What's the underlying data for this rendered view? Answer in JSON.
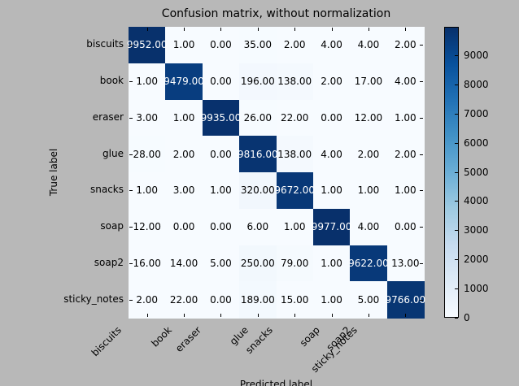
{
  "figure": {
    "background_color": "#b8b8b8",
    "plot_background_color": "#f7fbff",
    "text_color": "#000000",
    "cell_text_color_high": "#ffffff",
    "cell_text_color_low": "#000000"
  },
  "chart_data": {
    "type": "heatmap",
    "title": "Confusion matrix, without normalization",
    "xlabel": "Predicted label",
    "ylabel": "True label",
    "classes": [
      "biscuits",
      "book",
      "eraser",
      "glue",
      "snacks",
      "soap",
      "soap2",
      "sticky_notes"
    ],
    "matrix": [
      [
        9952,
        1,
        0,
        35,
        2,
        4,
        4,
        2
      ],
      [
        1,
        9479,
        0,
        196,
        138,
        2,
        17,
        4
      ],
      [
        3,
        1,
        9935,
        26,
        22,
        0,
        12,
        1
      ],
      [
        28,
        2,
        0,
        9816,
        138,
        4,
        2,
        2
      ],
      [
        1,
        3,
        1,
        320,
        9672,
        1,
        1,
        1
      ],
      [
        12,
        0,
        0,
        6,
        1,
        9977,
        4,
        0
      ],
      [
        16,
        14,
        5,
        250,
        79,
        1,
        9622,
        13
      ],
      [
        2,
        22,
        0,
        189,
        15,
        1,
        5,
        9766
      ]
    ],
    "value_decimals": 2,
    "vmin": 0,
    "vmax": 9977,
    "colormap_name": "Blues",
    "colormap_anchors": [
      [
        0.0,
        "#f7fbff"
      ],
      [
        0.125,
        "#deebf7"
      ],
      [
        0.25,
        "#c6dbef"
      ],
      [
        0.375,
        "#9ecae1"
      ],
      [
        0.5,
        "#6baed6"
      ],
      [
        0.625,
        "#4292c6"
      ],
      [
        0.75,
        "#2171b5"
      ],
      [
        0.875,
        "#08519c"
      ],
      [
        1.0,
        "#08306b"
      ]
    ],
    "colorbar_ticks": [
      0,
      1000,
      2000,
      3000,
      4000,
      5000,
      6000,
      7000,
      8000,
      9000
    ],
    "legend_position": "right-colorbar",
    "grid": false,
    "x_tick_rotation_deg": 45
  }
}
